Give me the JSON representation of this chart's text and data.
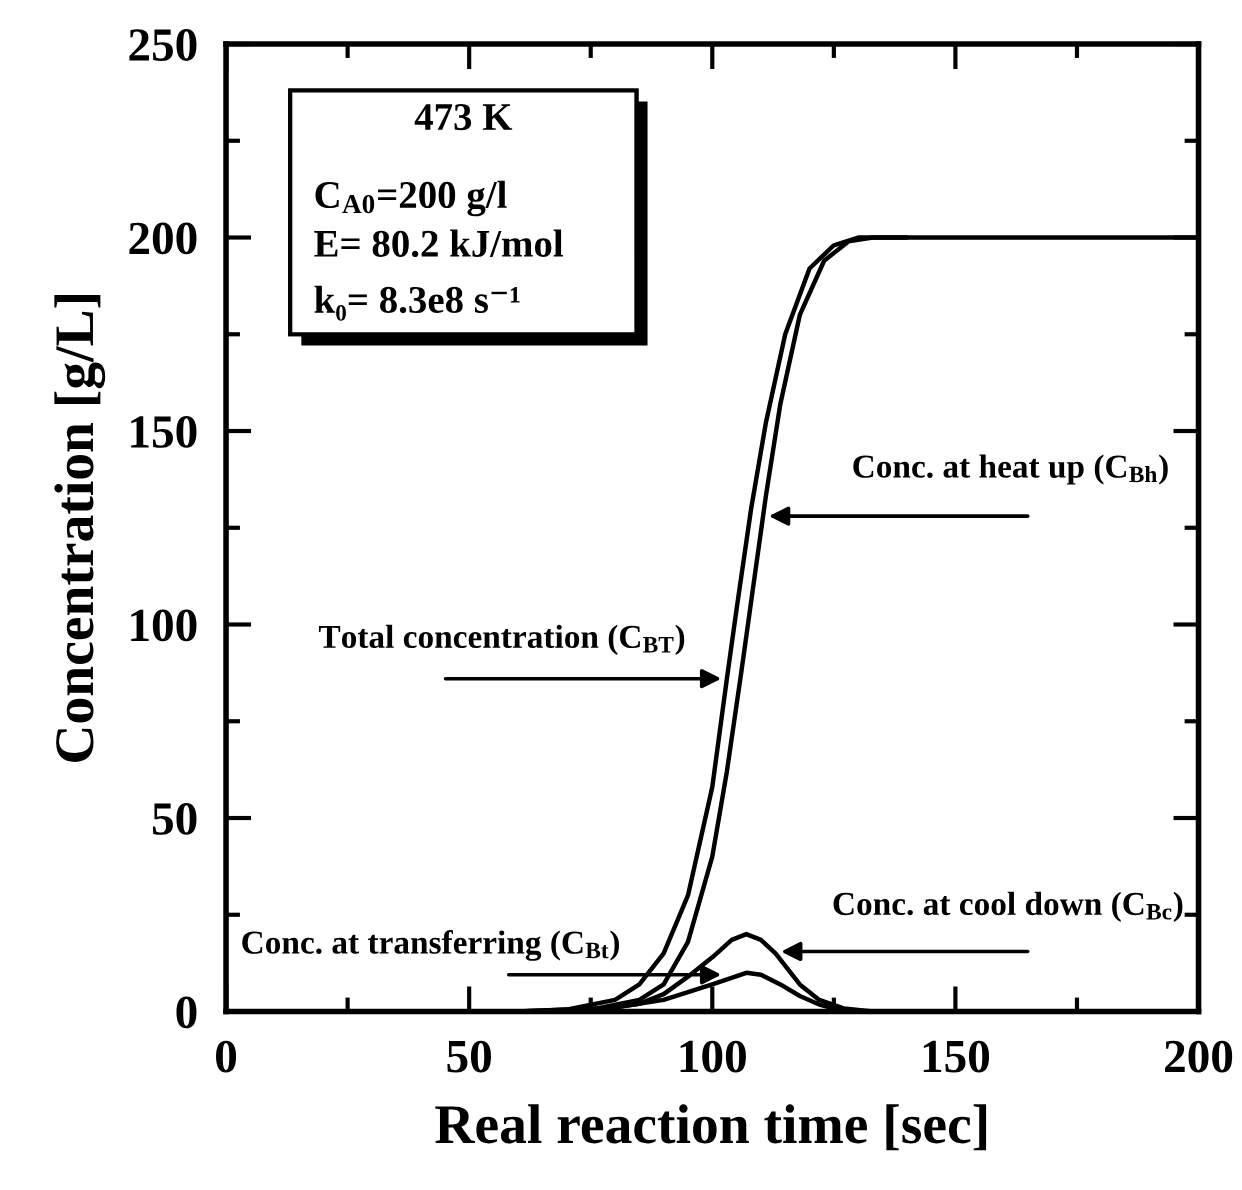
{
  "chart_data": {
    "type": "line",
    "xlabel": "Real reaction time [sec]",
    "ylabel": "Concentration [g/L]",
    "xlim": [
      0,
      200
    ],
    "ylim": [
      0,
      250
    ],
    "xticks": [
      0,
      {
        "value": 25,
        "label": null
      },
      50,
      {
        "value": 75,
        "label": null
      },
      100,
      {
        "value": 125,
        "label": null
      },
      150,
      {
        "value": 175,
        "label": null
      },
      200
    ],
    "yticks": [
      0,
      {
        "value": 25,
        "label": null
      },
      50,
      {
        "value": 75,
        "label": null
      },
      100,
      {
        "value": 125,
        "label": null
      },
      150,
      {
        "value": 175,
        "label": null
      },
      200,
      {
        "value": 225,
        "label": null
      },
      250
    ],
    "grid": false,
    "marker": "none",
    "line_style": "solid",
    "series": [
      {
        "color": "#000000",
        "x": [
          60,
          70,
          80,
          85,
          90,
          95,
          100,
          103,
          105,
          108,
          111,
          115,
          120,
          125,
          130,
          135,
          200
        ],
        "values": [
          0,
          0.5,
          3,
          7,
          15,
          30,
          58,
          86,
          104,
          130,
          152,
          175,
          192,
          198,
          200,
          200,
          200
        ]
      },
      {
        "color": "#000000",
        "x": [
          62,
          75,
          85,
          90,
          95,
          100,
          103,
          106,
          108,
          111,
          114,
          118,
          123,
          128,
          133,
          140
        ],
        "values": [
          0,
          0.5,
          3,
          7,
          18,
          40,
          62,
          88,
          106,
          133,
          157,
          180,
          194,
          199,
          200,
          200
        ]
      },
      {
        "color": "#000000",
        "x": [
          64,
          75,
          85,
          90,
          95,
          100,
          104,
          107,
          110,
          113,
          118,
          122,
          127,
          133
        ],
        "values": [
          0,
          0.3,
          2,
          4.5,
          9,
          14,
          18.5,
          20,
          18.5,
          15,
          7,
          3,
          0.8,
          0
        ]
      },
      {
        "color": "#000000",
        "x": [
          60,
          80,
          90,
          100,
          107,
          110,
          114,
          118,
          122,
          126,
          130
        ],
        "values": [
          0,
          1,
          3,
          7,
          10,
          9.5,
          7,
          4,
          1.8,
          0.5,
          0
        ]
      }
    ],
    "annotations": [
      "473 K",
      "C$_{A0}$=200 g/l",
      "E= 80.2 kJ/mol",
      "k₀= 8.3e8 s⁻¹",
      {
        "text": "Conc. at heat up (C$_{Bh}$)",
        "x": 110.5,
        "y": 128
      },
      {
        "text": "Total concentration (C$_{BT}$)",
        "x": 103,
        "y": 86
      },
      {
        "text": "Conc. at cool down (C$_{Bc}$)",
        "x": 113,
        "y": 15.5
      },
      {
        "text": "Conc. at transferring (C$_{Bt}$)",
        "x": 103,
        "y": 9.5
      }
    ]
  }
}
